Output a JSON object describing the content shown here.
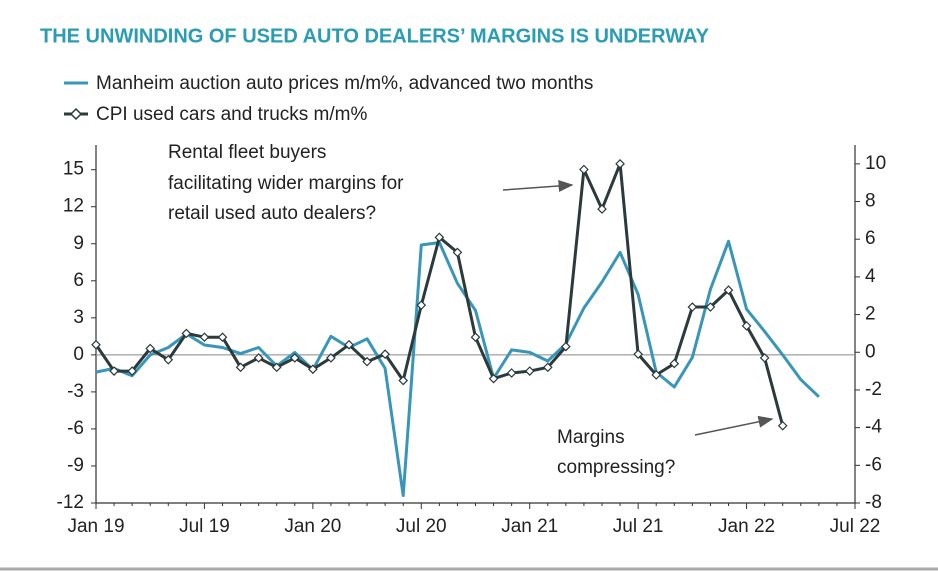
{
  "chart_data": {
    "type": "line",
    "title": "THE UNWINDING OF USED AUTO DEALERS’ MARGINS IS UNDERWAY",
    "categories": [
      "Jan 19",
      null,
      null,
      null,
      null,
      null,
      "Jul 19",
      null,
      null,
      null,
      null,
      null,
      "Jan 20",
      null,
      null,
      null,
      null,
      null,
      "Jul 20",
      null,
      null,
      null,
      null,
      null,
      "Jan 21",
      null,
      null,
      null,
      null,
      null,
      "Jul 21",
      null,
      null,
      null,
      null,
      null,
      "Jan 22",
      null,
      null,
      null,
      null,
      null,
      "Jul 22"
    ],
    "series": [
      {
        "name": "Manheim auction auto prices m/m%, advanced two months",
        "color": "#3a96b8",
        "axis": "y",
        "values": [
          -1.4,
          -1.1,
          -1.7,
          0,
          0.6,
          1.7,
          0.8,
          0.6,
          0.1,
          0.6,
          -0.9,
          0.2,
          -1.2,
          1.5,
          0.6,
          1.3,
          -1.1,
          -11.4,
          8.9,
          9.1,
          5.8,
          3.6,
          -1.9,
          0.4,
          0.2,
          -0.5,
          0.9,
          3.8,
          5.9,
          8.3,
          4.9,
          -1.4,
          -2.6,
          -0.2,
          5.3,
          9.2,
          3.7,
          1.9,
          0.0,
          -2.0,
          -3.4,
          null,
          null
        ]
      },
      {
        "name": "CPI used cars and trucks m/m%",
        "color": "#2b3a3a",
        "axis": "y2",
        "values": [
          0.4,
          -1.0,
          -1.0,
          0.2,
          -0.4,
          1.0,
          0.8,
          0.8,
          -0.8,
          -0.3,
          -0.8,
          -0.3,
          -0.9,
          -0.3,
          0.4,
          -0.5,
          -0.1,
          -1.5,
          2.5,
          6.1,
          5.3,
          0.8,
          -1.4,
          -1.1,
          -1.0,
          -0.8,
          0.3,
          9.7,
          7.6,
          10.0,
          -0.1,
          -1.2,
          -0.6,
          2.4,
          2.4,
          3.3,
          1.4,
          -0.3,
          -3.9,
          null,
          null,
          null,
          null
        ]
      }
    ],
    "ylim": [
      -12,
      17
    ],
    "yticks": [
      -12,
      -9,
      -6,
      -3,
      0,
      3,
      6,
      9,
      12,
      15
    ],
    "y2lim": [
      -8,
      11
    ],
    "y2ticks": [
      -8,
      -6,
      -4,
      -2,
      0,
      2,
      4,
      6,
      8,
      10
    ],
    "annotations": [
      {
        "lines": [
          "Rental fleet buyers",
          "facilitating wider margins for",
          "retail used auto dealers?"
        ]
      },
      {
        "lines": [
          "Margins",
          "compressing?"
        ]
      }
    ]
  }
}
